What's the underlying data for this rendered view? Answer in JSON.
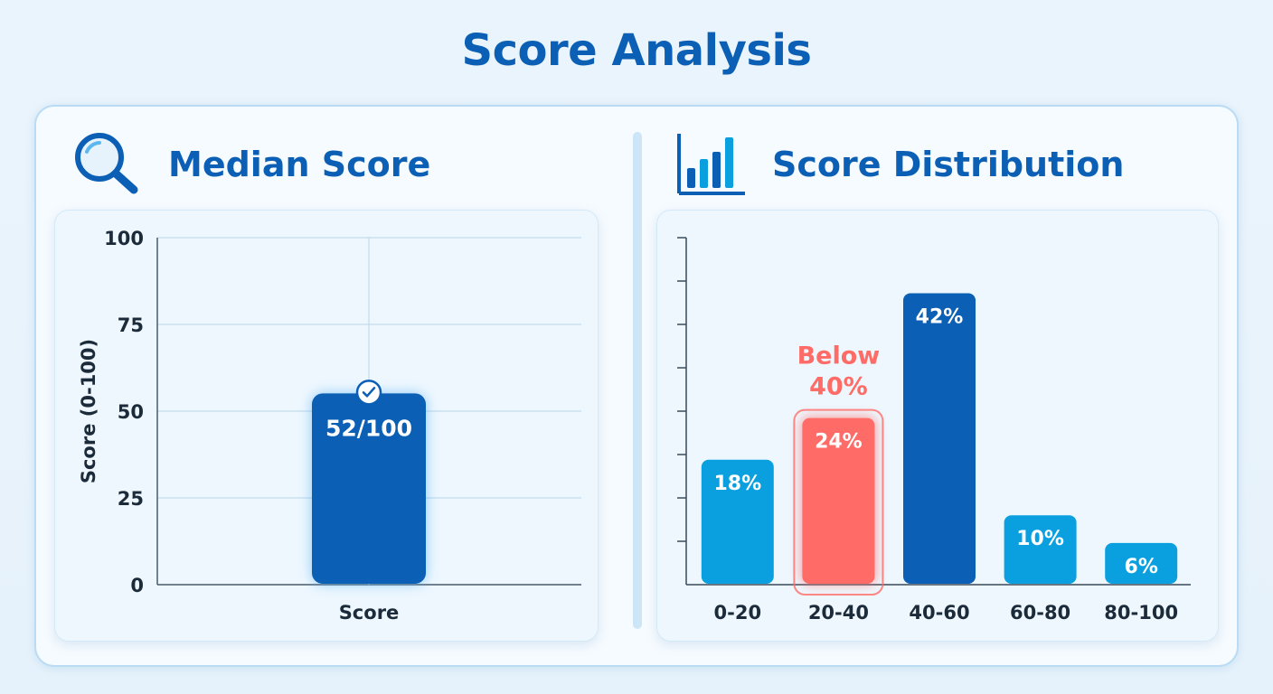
{
  "page": {
    "title": "Score Analysis"
  },
  "left_panel": {
    "title": "Median Score",
    "icon": "magnifier-icon"
  },
  "right_panel": {
    "title": "Score Distribution",
    "icon": "bar-chart-icon"
  },
  "chart_data": [
    {
      "type": "bar",
      "categories": [
        "Score"
      ],
      "values": [
        52
      ],
      "data_labels": [
        "52/100"
      ],
      "ylabel": "Score (0-100)",
      "xlabel": "",
      "ylim": [
        0,
        100
      ],
      "yticks": [
        0,
        25,
        50,
        75,
        100
      ],
      "grid": true,
      "bar_color": "#0b5fb4",
      "badge_icon": "check-icon"
    },
    {
      "type": "bar",
      "categories": [
        "0-20",
        "20-40",
        "40-60",
        "60-80",
        "80-100"
      ],
      "values": [
        18,
        24,
        42,
        10,
        6
      ],
      "data_labels": [
        "18%",
        "24%",
        "42%",
        "10%",
        "6%"
      ],
      "ylim": [
        0,
        50
      ],
      "grid": false,
      "colors": [
        "#0aa0e0",
        "#ff6b66",
        "#0b5fb4",
        "#0aa0e0",
        "#0aa0e0"
      ],
      "highlight_index": 1,
      "annotation": {
        "text_lines": [
          "Below",
          "40%"
        ],
        "color": "#ff6b66"
      }
    }
  ]
}
